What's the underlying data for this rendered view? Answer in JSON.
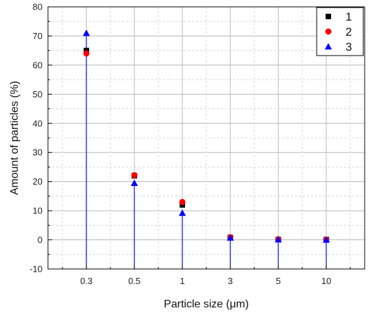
{
  "chart_data": {
    "type": "scatter",
    "title": "",
    "xlabel": "Particle size (μm)",
    "ylabel": "Amount of particles (%)",
    "categories": [
      "0.3",
      "0.5",
      "1",
      "3",
      "5",
      "10"
    ],
    "ylim": [
      -10,
      80
    ],
    "yticks": [
      -10,
      0,
      10,
      20,
      30,
      40,
      50,
      60,
      70,
      80
    ],
    "grid": true,
    "legend": "top-right",
    "series": [
      {
        "name": "1",
        "marker": "square",
        "color": "#000000",
        "values": [
          65,
          22,
          12,
          0.8,
          0.1,
          0.1
        ]
      },
      {
        "name": "2",
        "marker": "circle",
        "color": "#ff0000",
        "values": [
          64,
          22.2,
          13,
          0.9,
          0.2,
          0.1
        ]
      },
      {
        "name": "3",
        "marker": "triangle",
        "color": "#0000ff",
        "values": [
          71,
          19.5,
          9.2,
          0.7,
          0.1,
          0.0
        ]
      }
    ],
    "stem_color": "#0000ff"
  }
}
